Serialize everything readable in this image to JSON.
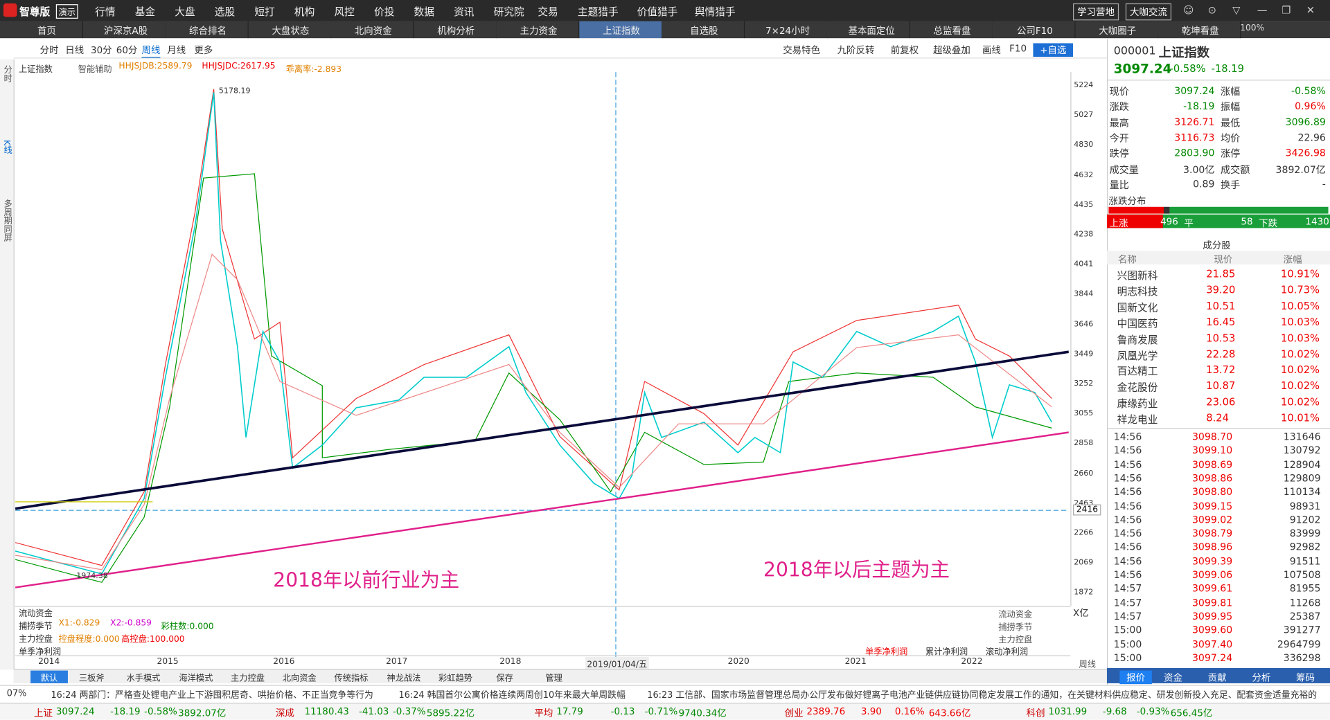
{
  "logo": {
    "name": "智尊版",
    "badge": "演示"
  },
  "menu": [
    "行情",
    "基金",
    "大盘",
    "选股",
    "短打",
    "机构",
    "风控",
    "价投",
    "数据",
    "资讯",
    "研究院",
    "交易",
    "主题猎手",
    "价值猎手",
    "舆情猎手"
  ],
  "top_buttons": [
    "学习营地",
    "大咖交流"
  ],
  "zoom": "100%",
  "tabs": [
    "首页",
    "沪深京A股",
    "综合排名",
    "大盘状态",
    "北向资金",
    "机构分析",
    "主力资金",
    "上证指数",
    "自选股",
    "7×24小时",
    "基本面定位",
    "总监看盘",
    "公司F10",
    "大咖圈子",
    "乾坤看盘"
  ],
  "periods": [
    "分时",
    "日线",
    "30分",
    "60分",
    "周线",
    "月线",
    "更多"
  ],
  "tools": [
    "交易特色",
    "九阶反转",
    "前复权",
    "超级叠加",
    "画线",
    "F10",
    "+自选"
  ],
  "sidebar": [
    "分时",
    "K线",
    "多周期同屏"
  ],
  "indicator": [
    "上证指数",
    "智能辅助",
    "HHJSJDB:2589.79",
    "HHJSJDC:2617.95",
    "乖离率:-2.893"
  ],
  "price_axis": [
    "5224",
    "5027",
    "4830",
    "4632",
    "4435",
    "4238",
    "4041",
    "3844",
    "3646",
    "3449",
    "3252",
    "3055",
    "2858",
    "2660",
    "2463",
    "2266",
    "2069",
    "1872"
  ],
  "annotations": {
    "high": "5178.19",
    "low": "1974.38",
    "level": "2416",
    "left_note": "2018年以前行业为主",
    "right_note": "2018年以后主题为主"
  },
  "x_axis": [
    "2014",
    "2015",
    "2016",
    "2017",
    "2018",
    "2019/01/04/五",
    "2020",
    "2021",
    "2022"
  ],
  "x_axis_period": "周线",
  "lower": {
    "flow": "流动资金",
    "season": "捕捞季节",
    "x1": "X1:-0.829",
    "x2": "X2:-0.859",
    "bars": "彩柱数:0.000",
    "control": "主力控盘",
    "degree": "控盘程度:0.000",
    "high_control": "高控盘:100.000",
    "profit": "单季净利润",
    "unit": "X亿",
    "right_labels": [
      "流动资金",
      "捕捞季节",
      "主力控盘"
    ],
    "profit_buttons": [
      "单季净利润",
      "累计净利润",
      "滚动净利润"
    ]
  },
  "bottom_tabs": [
    "默认",
    "三板斧",
    "水手模式",
    "海洋模式",
    "主力控盘",
    "北向资金",
    "传统指标",
    "神龙战法",
    "彩虹趋势",
    "保存",
    "管理"
  ],
  "news": [
    "07%",
    "16:24 两部门：严格查处锂电产业上下游囤积居奇、哄抬价格、不正当竞争等行为",
    "16:24 韩国首尔公寓价格连续两周创10年来最大单周跌幅",
    "16:23 工信部、国家市场监督管理总局办公厅发布做好锂离子电池产业链供应链协同稳定发展工作的通知，在关键材料供应稳定、研发创新投入充足、配套资金适量充裕的"
  ],
  "status": [
    [
      "上证",
      "3097.24",
      "-18.19",
      "-0.58%",
      "3892.07亿"
    ],
    [
      "深成",
      "11180.43",
      "-41.03",
      "-0.37%",
      "5895.22亿"
    ],
    [
      "平均",
      "17.79",
      "-0.13",
      "-0.71%",
      "9740.34亿"
    ],
    [
      "创业",
      "2389.76",
      "3.90",
      "0.16%",
      "643.66亿"
    ],
    [
      "科创",
      "1031.99",
      "-9.68",
      "-0.93%",
      "656.45亿"
    ]
  ],
  "quote": {
    "code": "000001",
    "name": "上证指数",
    "price": "3097.24",
    "pct": "-0.58%",
    "change": "-18.19",
    "grid": [
      [
        "现价",
        "3097.24",
        "涨幅",
        "-0.58%"
      ],
      [
        "涨跌",
        "-18.19",
        "振幅",
        "0.96%"
      ],
      [
        "最高",
        "3126.71",
        "最低",
        "3096.89"
      ],
      [
        "今开",
        "3116.73",
        "均价",
        "22.96"
      ],
      [
        "跌停",
        "2803.90",
        "涨停",
        "3426.98"
      ],
      [
        "成交量",
        "3.00亿",
        "成交额",
        "3892.07亿"
      ],
      [
        "量比",
        "0.89",
        "换手",
        "-"
      ]
    ]
  },
  "distribution": {
    "title": "涨跌分布",
    "up_label": "上涨",
    "up": 496,
    "flat_label": "平",
    "flat": 58,
    "down_label": "下跌",
    "down": 1430
  },
  "constituents": {
    "title": "成分股",
    "columns": [
      "名称",
      "现价",
      "涨幅"
    ],
    "rows": [
      [
        "兴图新科",
        "21.85",
        "10.91%"
      ],
      [
        "明志科技",
        "39.20",
        "10.73%"
      ],
      [
        "国新文化",
        "10.51",
        "10.05%"
      ],
      [
        "中国医药",
        "16.45",
        "10.03%"
      ],
      [
        "鲁商发展",
        "10.53",
        "10.03%"
      ],
      [
        "凤凰光学",
        "22.28",
        "10.02%"
      ],
      [
        "百达精工",
        "13.72",
        "10.02%"
      ],
      [
        "金花股份",
        "10.87",
        "10.02%"
      ],
      [
        "康缘药业",
        "23.06",
        "10.02%"
      ],
      [
        "祥龙电业",
        "8.24",
        "10.01%"
      ]
    ]
  },
  "ticks": [
    [
      "14:56",
      "3098.70",
      "131646"
    ],
    [
      "14:56",
      "3099.10",
      "130792"
    ],
    [
      "14:56",
      "3098.69",
      "128904"
    ],
    [
      "14:56",
      "3098.86",
      "129809"
    ],
    [
      "14:56",
      "3098.80",
      "110134"
    ],
    [
      "14:56",
      "3099.15",
      "98931"
    ],
    [
      "14:56",
      "3099.02",
      "91202"
    ],
    [
      "14:56",
      "3098.79",
      "83999"
    ],
    [
      "14:56",
      "3098.96",
      "92982"
    ],
    [
      "14:56",
      "3099.39",
      "91511"
    ],
    [
      "14:56",
      "3099.06",
      "107508"
    ],
    [
      "14:57",
      "3099.61",
      "81955"
    ],
    [
      "14:57",
      "3099.81",
      "11268"
    ],
    [
      "14:57",
      "3099.95",
      "25387"
    ],
    [
      "15:00",
      "3099.60",
      "391277"
    ],
    [
      "15:00",
      "3097.40",
      "2964799"
    ],
    [
      "15:00",
      "3097.24",
      "336298"
    ]
  ],
  "panel_tabs": [
    "报价",
    "资金",
    "贡献",
    "分析",
    "筹码"
  ]
}
